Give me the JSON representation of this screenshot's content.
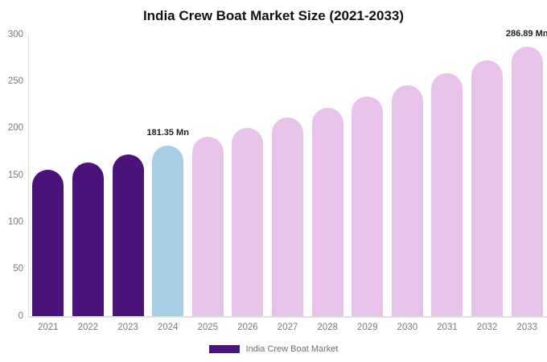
{
  "chart_data": {
    "type": "bar",
    "title": "India Crew Boat Market Size (2021-2033)",
    "categories": [
      "2021",
      "2022",
      "2023",
      "2024",
      "2025",
      "2026",
      "2027",
      "2028",
      "2029",
      "2030",
      "2031",
      "2032",
      "2033"
    ],
    "series": [
      {
        "name": "India Crew Boat Market",
        "values": [
          155.6,
          163.8,
          172.3,
          181.35,
          190.8,
          200.8,
          211.3,
          222.4,
          234.0,
          246.2,
          259.1,
          272.6,
          286.89
        ]
      }
    ],
    "unit": "Mn",
    "xlabel": "",
    "ylabel": "",
    "ylim": [
      0,
      300
    ],
    "yticks": [
      0,
      50,
      100,
      150,
      200,
      250,
      300
    ],
    "grid": false,
    "legend_position": "bottom",
    "bar_colors": [
      "#4B1279",
      "#4B1279",
      "#4B1279",
      "#A6CEE3",
      "#E7C3E9",
      "#E7C3E9",
      "#E7C3E9",
      "#E7C3E9",
      "#E7C3E9",
      "#E7C3E9",
      "#E7C3E9",
      "#E7C3E9",
      "#E7C3E9"
    ],
    "annotations": [
      {
        "category": "2024",
        "text": "181.35 Mn"
      },
      {
        "category": "2033",
        "text": "286.89 Mn"
      }
    ]
  },
  "legend": {
    "label": "India Crew Boat Market",
    "swatch_color": "#4B1279"
  },
  "colors": {
    "bar_historical": "#4B1279",
    "bar_current": "#A6CEE3",
    "bar_forecast": "#E7C3E9",
    "axis_line": "#e0e0e0",
    "tick_text": "#7a7a7a",
    "title_text": "#111111",
    "annotation_text": "#1f1f1f"
  }
}
